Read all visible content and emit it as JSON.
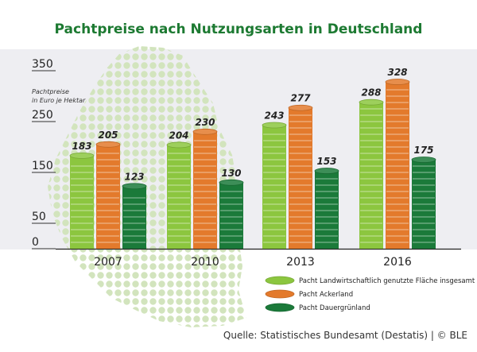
{
  "chart_data": {
    "type": "bar",
    "title": "Pachtpreise nach Nutzungsarten in Deutschland",
    "ylabel": "Pachtpreise\nin Euro je Hektar",
    "ylim": [
      0,
      350
    ],
    "yticks": [
      0,
      50,
      150,
      250,
      350
    ],
    "categories": [
      "2007",
      "2010",
      "2013",
      "2016"
    ],
    "series": [
      {
        "name": "Pacht Landwirtschaftlich genutzte Fläche insgesamt",
        "color": "#8cc63f",
        "values": [
          183,
          204,
          243,
          288
        ]
      },
      {
        "name": "Pacht Ackerland",
        "color": "#e37a2c",
        "values": [
          205,
          230,
          277,
          328
        ]
      },
      {
        "name": "Pacht Dauergrünland",
        "color": "#1b7a3a",
        "values": [
          123,
          130,
          153,
          175
        ]
      }
    ],
    "legend": "bottom-right",
    "grid": false
  },
  "source": "Quelle: Statistisches Bundesamt (Destatis) | © BLE",
  "colors": {
    "title": "#1d7a32",
    "panel": "#eeeef2",
    "dots": "#d2e4bd"
  }
}
